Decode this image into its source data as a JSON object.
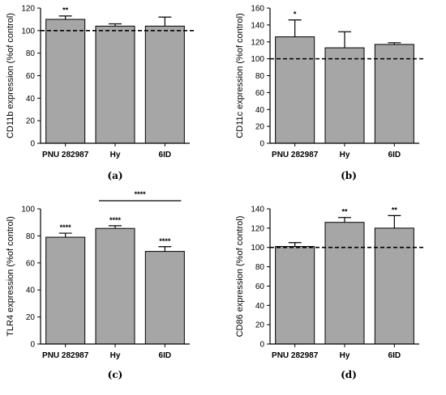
{
  "chart_data": [
    {
      "type": "bar",
      "panel_label": "(a)",
      "categories": [
        "PNU 282987",
        "Hy",
        "6ID"
      ],
      "values": [
        110,
        104,
        104
      ],
      "errors": [
        3,
        2,
        8
      ],
      "significance": [
        "**",
        "",
        ""
      ],
      "ylabel": "CD11b expression (%of control)",
      "ylim": [
        0,
        120
      ],
      "yticks": [
        "0",
        "20",
        "40",
        "60",
        "80",
        "100",
        "120"
      ],
      "reference_line": 100,
      "bar_color": "#a6a6a6"
    },
    {
      "type": "bar",
      "panel_label": "(b)",
      "categories": [
        "PNU 282987",
        "Hy",
        "6ID"
      ],
      "values": [
        126,
        113,
        117
      ],
      "errors": [
        20,
        19,
        2
      ],
      "significance": [
        "*",
        "",
        ""
      ],
      "ylabel": "CD11c expression (%of control)",
      "ylim": [
        0,
        160
      ],
      "yticks": [
        "0",
        "20",
        "40",
        "60",
        "80",
        "100",
        "120",
        "140",
        "160"
      ],
      "reference_line": 100,
      "bar_color": "#a6a6a6"
    },
    {
      "type": "bar",
      "panel_label": "(c)",
      "categories": [
        "PNU 282987",
        "Hy",
        "6ID"
      ],
      "values": [
        79,
        85.5,
        68.5
      ],
      "errors": [
        3,
        2,
        3.5
      ],
      "significance": [
        "****",
        "****",
        "****"
      ],
      "bracket": {
        "from": 1,
        "to": 2,
        "label": "****"
      },
      "ylabel": "TLR4 expression (%of control)",
      "ylim": [
        0,
        100
      ],
      "yticks": [
        "0",
        "20",
        "40",
        "60",
        "80",
        "100"
      ],
      "reference_line": null,
      "bar_color": "#a6a6a6"
    },
    {
      "type": "bar",
      "panel_label": "(d)",
      "categories": [
        "PNU 282987",
        "Hy",
        "6ID"
      ],
      "values": [
        101,
        126,
        120
      ],
      "errors": [
        4,
        5,
        13
      ],
      "significance": [
        "",
        "**",
        "**"
      ],
      "ylabel": "CD86 expression (%of control)",
      "ylim": [
        0,
        140
      ],
      "yticks": [
        "0",
        "20",
        "40",
        "60",
        "80",
        "100",
        "120",
        "140"
      ],
      "reference_line": 100,
      "bar_color": "#a6a6a6"
    }
  ]
}
